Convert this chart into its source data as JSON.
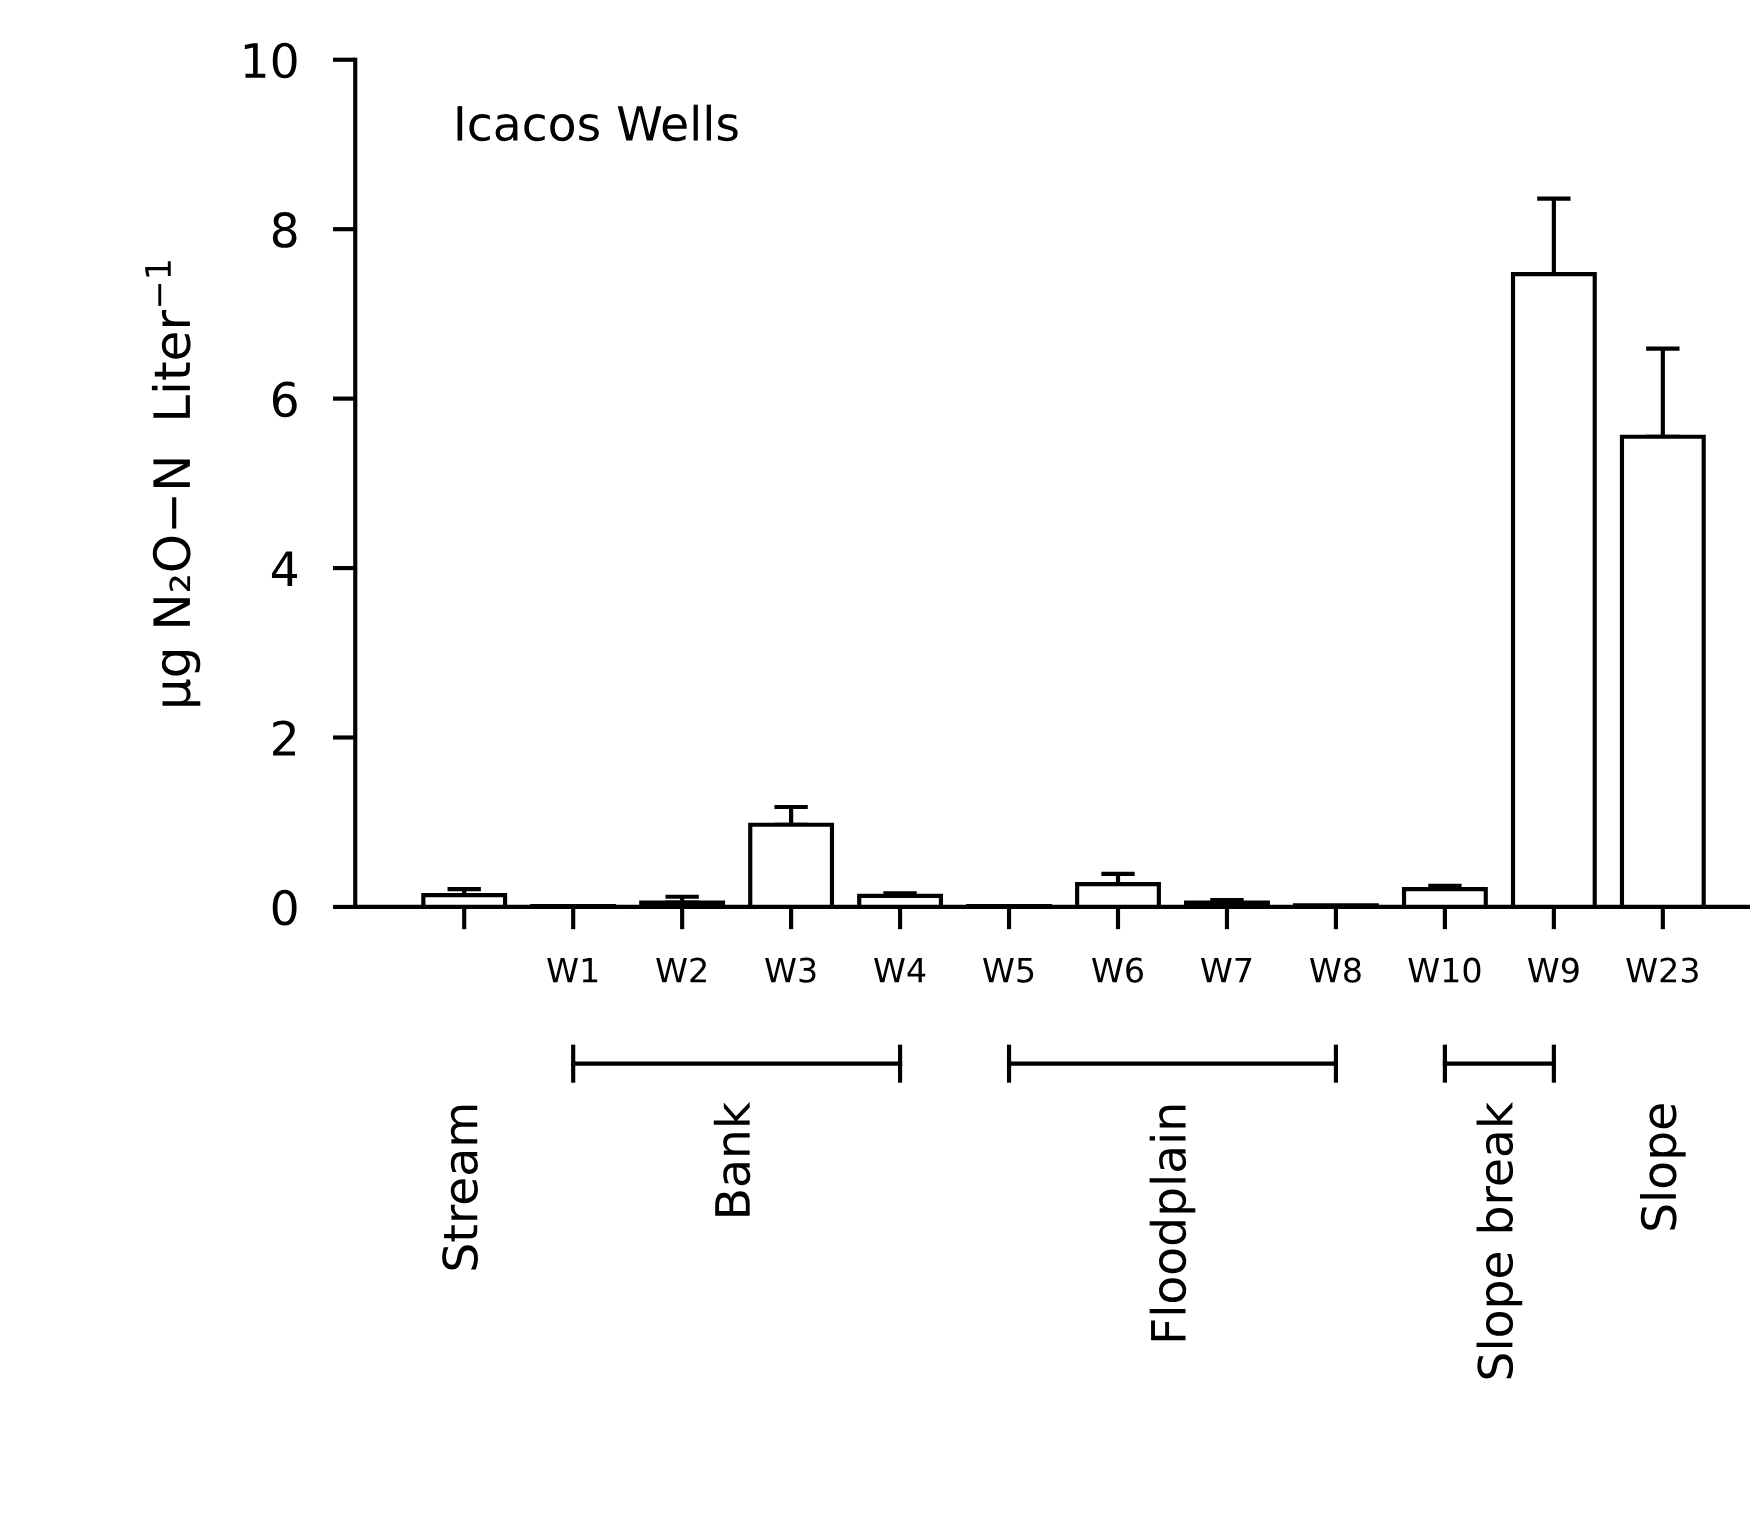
{
  "chart_data": {
    "type": "bar",
    "title": "Icacos Wells",
    "ylabel": "μg N₂O−N  Liter$^{−1}$",
    "categories": [
      null,
      "W1",
      "W2",
      "W3",
      "W4",
      "W5",
      "W6",
      "W7",
      "W8",
      "W10",
      "W9",
      "W23"
    ],
    "values": [
      0.14,
      0.01,
      0.05,
      0.97,
      0.13,
      0.01,
      0.27,
      0.05,
      0.02,
      0.21,
      7.47,
      5.55
    ],
    "errors": [
      [
        0.14,
        0.21
      ],
      null,
      [
        0.05,
        0.12
      ],
      [
        0.97,
        1.18
      ],
      [
        0.13,
        0.16
      ],
      null,
      [
        0.27,
        0.39
      ],
      [
        0.05,
        0.08
      ],
      null,
      [
        0.21,
        0.25
      ],
      [
        7.47,
        8.36
      ],
      [
        5.55,
        6.59
      ]
    ],
    "color": "#ffffff",
    "ylim": [
      0,
      10
    ],
    "yticks": [
      0,
      2,
      4,
      6,
      8,
      10
    ],
    "grid": false,
    "annotations": [
      "Stream",
      "Bank",
      "Floodplain",
      "Slope break",
      "Slope"
    ]
  }
}
